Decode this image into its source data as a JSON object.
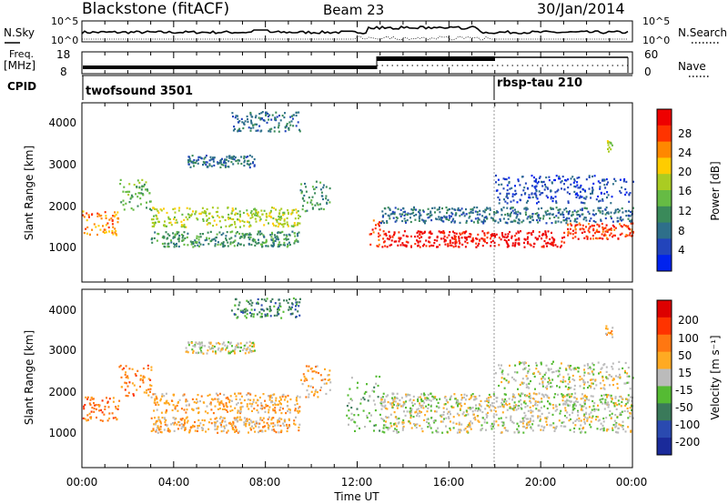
{
  "header": {
    "station": "Blackstone (fitACF)",
    "beam": "Beam 23",
    "date": "30/Jan/2014"
  },
  "noise_panel": {
    "left_label": "N.Sky",
    "right_label": "N.Search",
    "left_ticks": [
      "10^5",
      "10^0"
    ],
    "right_ticks": [
      "10^5",
      "10^0"
    ]
  },
  "freq_panel": {
    "left_label_line1": "Freq.",
    "left_label_line2": "[MHz]",
    "left_ticks": [
      "18",
      "8"
    ],
    "right_label": "Nave",
    "right_ticks": [
      "60",
      "0"
    ]
  },
  "cpid": {
    "label": "CPID",
    "programs": [
      {
        "name": "twofsound 3501",
        "start_hour": 0
      },
      {
        "name": "rbsp-tau 210",
        "start_hour": 18
      }
    ]
  },
  "x_axis": {
    "label": "Time UT",
    "ticks": [
      "00:00",
      "04:00",
      "08:00",
      "12:00",
      "16:00",
      "20:00",
      "00:00"
    ],
    "range_hours": [
      0,
      24
    ]
  },
  "power_panel": {
    "ylabel": "Slant Range [km]",
    "yticks": [
      "4000",
      "3000",
      "2000",
      "1000"
    ],
    "colorbar_label": "Power [dB]",
    "colorbar_ticks": [
      "28",
      "24",
      "20",
      "16",
      "12",
      "8",
      "4"
    ],
    "colors": [
      "#0022ee",
      "#2244bb",
      "#2e6f8a",
      "#3a8a5a",
      "#66bb44",
      "#aacc22",
      "#ffcc00",
      "#ff8800",
      "#ff3300",
      "#ee0000"
    ]
  },
  "velocity_panel": {
    "ylabel": "Slant Range [km]",
    "yticks": [
      "4000",
      "3000",
      "2000",
      "1000"
    ],
    "colorbar_label": "Velocity [m s⁻¹]",
    "colorbar_ticks": [
      "200",
      "100",
      "50",
      "15",
      "-15",
      "-50",
      "-100",
      "-200"
    ],
    "colors": [
      "#1a2a9a",
      "#2a4ab0",
      "#3a7a5a",
      "#55bb33",
      "#bbbbbb",
      "#ffaa22",
      "#ff7711",
      "#ff3300",
      "#dd0000"
    ]
  },
  "chart_data": {
    "type": "heatmap",
    "x_range_hours": [
      0,
      24
    ],
    "y_range_km": [
      0,
      4500
    ],
    "power_regions": [
      {
        "t0": 0.0,
        "t1": 1.6,
        "r0": 1200,
        "r1": 1800,
        "level": 7
      },
      {
        "t0": 1.6,
        "t1": 3.0,
        "r0": 1800,
        "r1": 2600,
        "level": 4
      },
      {
        "t0": 3.0,
        "t1": 9.5,
        "r0": 1400,
        "r1": 1900,
        "level": 5
      },
      {
        "t0": 3.0,
        "t1": 9.5,
        "r0": 900,
        "r1": 1300,
        "level": 3
      },
      {
        "t0": 4.5,
        "t1": 7.5,
        "r0": 2900,
        "r1": 3200,
        "level": 2
      },
      {
        "t0": 6.5,
        "t1": 9.5,
        "r0": 3800,
        "r1": 4300,
        "level": 2
      },
      {
        "t0": 9.5,
        "t1": 10.8,
        "r0": 1800,
        "r1": 2600,
        "level": 3
      },
      {
        "t0": 12.5,
        "t1": 13.2,
        "r0": 900,
        "r1": 1600,
        "level": 8
      },
      {
        "t0": 13.2,
        "t1": 21.0,
        "r0": 900,
        "r1": 1300,
        "level": 9
      },
      {
        "t0": 21.0,
        "t1": 24.0,
        "r0": 1100,
        "r1": 1500,
        "level": 8
      },
      {
        "t0": 13.0,
        "t1": 24.0,
        "r0": 1500,
        "r1": 1900,
        "level": 2
      },
      {
        "t0": 18.0,
        "t1": 24.0,
        "r0": 2000,
        "r1": 2700,
        "level": 1
      },
      {
        "t0": 22.8,
        "t1": 23.1,
        "r0": 3300,
        "r1": 3600,
        "level": 5
      }
    ],
    "velocity_regions": [
      {
        "t0": 0.0,
        "t1": 1.6,
        "r0": 1200,
        "r1": 1800,
        "level": 6
      },
      {
        "t0": 1.6,
        "t1": 3.0,
        "r0": 1800,
        "r1": 2600,
        "level": 6
      },
      {
        "t0": 3.0,
        "t1": 9.5,
        "r0": 1400,
        "r1": 1900,
        "level": 5
      },
      {
        "t0": 3.0,
        "t1": 9.5,
        "r0": 900,
        "r1": 1300,
        "level": 5
      },
      {
        "t0": 4.5,
        "t1": 7.5,
        "r0": 2900,
        "r1": 3200,
        "level": 4
      },
      {
        "t0": 6.5,
        "t1": 9.5,
        "r0": 3800,
        "r1": 4300,
        "level": 2
      },
      {
        "t0": 9.5,
        "t1": 10.8,
        "r0": 1800,
        "r1": 2600,
        "level": 5
      },
      {
        "t0": 11.5,
        "t1": 13.0,
        "r0": 900,
        "r1": 2400,
        "level": 3
      },
      {
        "t0": 13.0,
        "t1": 24.0,
        "r0": 900,
        "r1": 1500,
        "level": 4
      },
      {
        "t0": 13.0,
        "t1": 24.0,
        "r0": 1500,
        "r1": 1900,
        "level": 4
      },
      {
        "t0": 18.0,
        "t1": 24.0,
        "r0": 2000,
        "r1": 2700,
        "level": 4
      },
      {
        "t0": 22.8,
        "t1": 23.1,
        "r0": 3300,
        "r1": 3600,
        "level": 5
      }
    ],
    "frequency_mhz": [
      {
        "t0": 0,
        "t1": 13,
        "value": 10.5
      },
      {
        "t0": 13,
        "t1": 24,
        "value": 15.5
      }
    ]
  }
}
